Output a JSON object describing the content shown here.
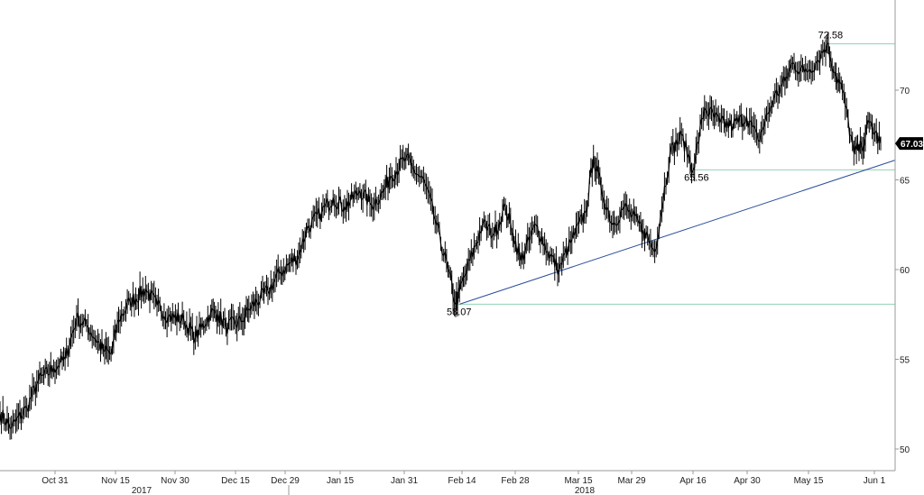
{
  "chart_data": {
    "type": "line",
    "ylim": [
      48,
      75
    ],
    "y_ticks": [
      50,
      55,
      60,
      65,
      70
    ],
    "x_ticks": [
      "Oct 31",
      "Nov 15",
      "Nov 30",
      "Dec 15",
      "Dec 29",
      "Jan 15",
      "Jan 31",
      "Feb 14",
      "Feb 28",
      "Mar 15",
      "Mar 29",
      "Apr 16",
      "Apr 30",
      "May 15",
      "Jun 1"
    ],
    "year_labels": [
      "2017",
      "2018"
    ],
    "series": [
      {
        "x": [
          "Oct 17",
          "Oct 20",
          "Oct 24",
          "Oct 27",
          "Oct 31",
          "Nov 3",
          "Nov 6",
          "Nov 9",
          "Nov 13",
          "Nov 15",
          "Nov 17",
          "Nov 20",
          "Nov 24",
          "Nov 27",
          "Nov 30",
          "Dec 4",
          "Dec 7",
          "Dec 11",
          "Dec 13",
          "Dec 15",
          "Dec 19",
          "Dec 21",
          "Dec 26",
          "Dec 29",
          "Jan 3",
          "Jan 5",
          "Jan 9",
          "Jan 12",
          "Jan 15",
          "Jan 19",
          "Jan 22",
          "Jan 25",
          "Jan 27",
          "Jan 31",
          "Feb 2",
          "Feb 5",
          "Feb 8",
          "Feb 11",
          "Feb 13",
          "Feb 14",
          "Feb 16",
          "Feb 20",
          "Feb 23",
          "Feb 26",
          "Feb 28",
          "Mar 2",
          "Mar 6",
          "Mar 9",
          "Mar 12",
          "Mar 15",
          "Mar 19",
          "Mar 21",
          "Mar 23",
          "Mar 26",
          "Mar 29",
          "Apr 3",
          "Apr 6",
          "Apr 10",
          "Apr 13",
          "Apr 16",
          "Apr 19",
          "Apr 23",
          "Apr 26",
          "Apr 30",
          "May 3",
          "May 7",
          "May 10",
          "May 12",
          "May 15",
          "May 18",
          "May 21",
          "May 23",
          "May 25",
          "May 28",
          "May 30",
          "Jun 1",
          "Jun 4"
        ],
        "values": [
          52.0,
          51.2,
          52.3,
          53.8,
          54.5,
          55.0,
          57.3,
          56.8,
          55.5,
          55.3,
          57.2,
          58.2,
          58.9,
          58.0,
          57.4,
          57.2,
          56.2,
          57.6,
          57.5,
          56.8,
          57.1,
          57.8,
          58.8,
          59.8,
          60.8,
          62.2,
          63.2,
          64.0,
          63.5,
          64.4,
          63.6,
          64.3,
          65.2,
          66.2,
          65.6,
          64.8,
          62.5,
          60.0,
          58.07,
          58.8,
          60.0,
          62.5,
          62.0,
          63.5,
          62.0,
          60.5,
          62.5,
          61.0,
          60.0,
          61.5,
          63.2,
          66.3,
          64.5,
          62.5,
          63.5,
          62.2,
          61.0,
          66.5,
          67.5,
          65.56,
          69.0,
          68.2,
          68.0,
          68.5,
          67.2,
          69.5,
          70.5,
          71.5,
          71.0,
          71.5,
          72.58,
          71.0,
          70.0,
          66.5,
          66.8,
          68.2,
          67.03
        ]
      }
    ],
    "annotations": [
      {
        "label": "72.58",
        "value": 72.58
      },
      {
        "label": "65.56",
        "value": 65.56
      },
      {
        "label": "58.07",
        "value": 58.07
      }
    ],
    "trendline": {
      "from": {
        "x": "Feb 14",
        "y": 58.07
      },
      "to": {
        "x": "Jun 4",
        "y": 66.0
      }
    },
    "last_value_label": "67.03",
    "colors": {
      "line": "#000000",
      "support": "#8fd3b2",
      "trend": "#2a4e9a",
      "axis": "#999999",
      "tag": "#000000"
    },
    "grid": false
  }
}
